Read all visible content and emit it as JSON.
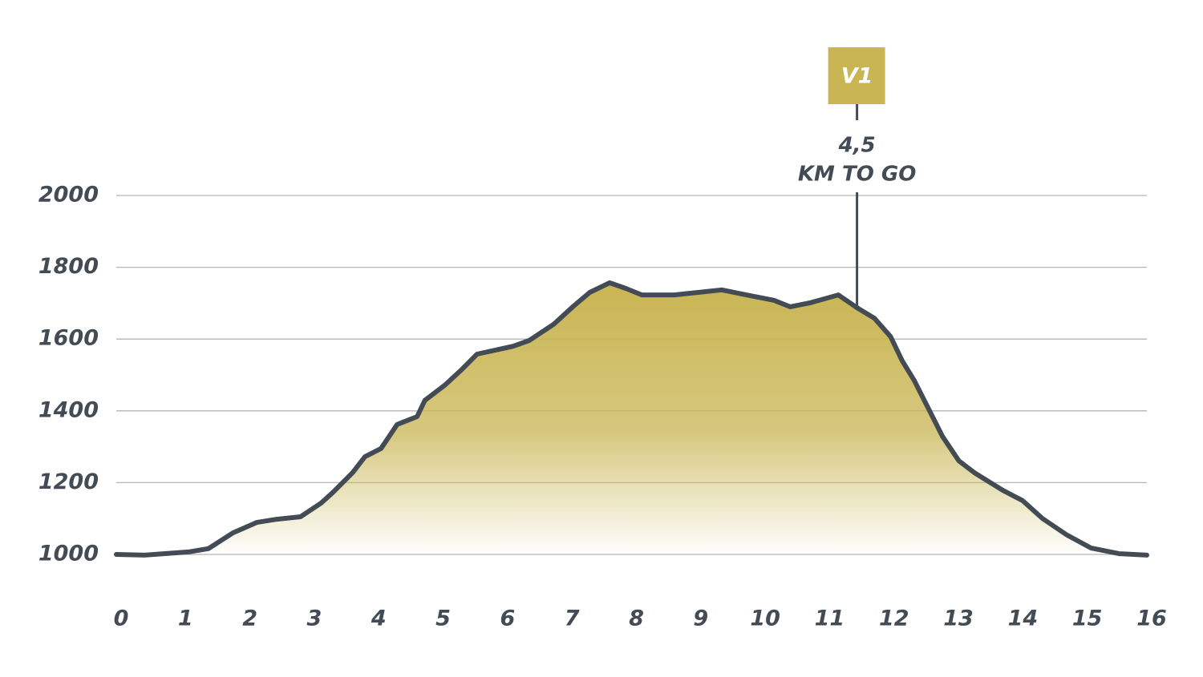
{
  "chart_data": {
    "type": "area",
    "x": [
      0,
      0.44,
      1.12,
      1.43,
      1.81,
      2.18,
      2.49,
      2.86,
      3.18,
      3.36,
      3.67,
      3.86,
      4.11,
      4.36,
      4.67,
      4.79,
      5.11,
      5.35,
      5.6,
      6.16,
      6.41,
      6.79,
      7.1,
      7.35,
      7.66,
      7.91,
      8.16,
      8.66,
      9.03,
      9.4,
      9.78,
      10.21,
      10.46,
      10.77,
      11.21,
      11.52,
      11.77,
      12.02,
      12.2,
      12.39,
      12.64,
      12.83,
      13.08,
      13.32,
      13.76,
      14.07,
      14.38,
      14.76,
      15.13,
      15.57,
      16
    ],
    "values": [
      1000,
      998,
      1007,
      1016,
      1060,
      1089,
      1098,
      1105,
      1143,
      1172,
      1228,
      1272,
      1295,
      1362,
      1384,
      1429,
      1473,
      1513,
      1558,
      1580,
      1596,
      1641,
      1692,
      1730,
      1757,
      1741,
      1723,
      1723,
      1730,
      1737,
      1723,
      1708,
      1690,
      1701,
      1723,
      1685,
      1658,
      1607,
      1540,
      1484,
      1395,
      1328,
      1261,
      1228,
      1179,
      1150,
      1100,
      1054,
      1018,
      1002,
      998
    ],
    "line_color": "#434b55",
    "fill_color": "#c9b553",
    "xlim": [
      0,
      16
    ],
    "xticks": [
      0,
      1,
      2,
      3,
      4,
      5,
      6,
      7,
      8,
      9,
      10,
      11,
      12,
      13,
      14,
      15,
      16
    ],
    "ylim": [
      1000,
      2000
    ],
    "yticks": [
      1000,
      1200,
      1400,
      1600,
      1800,
      2000
    ],
    "grid": true,
    "annotations": [
      {
        "x": 11.5,
        "label": "V1",
        "text": [
          "4,5",
          "KM TO GO"
        ]
      }
    ]
  }
}
